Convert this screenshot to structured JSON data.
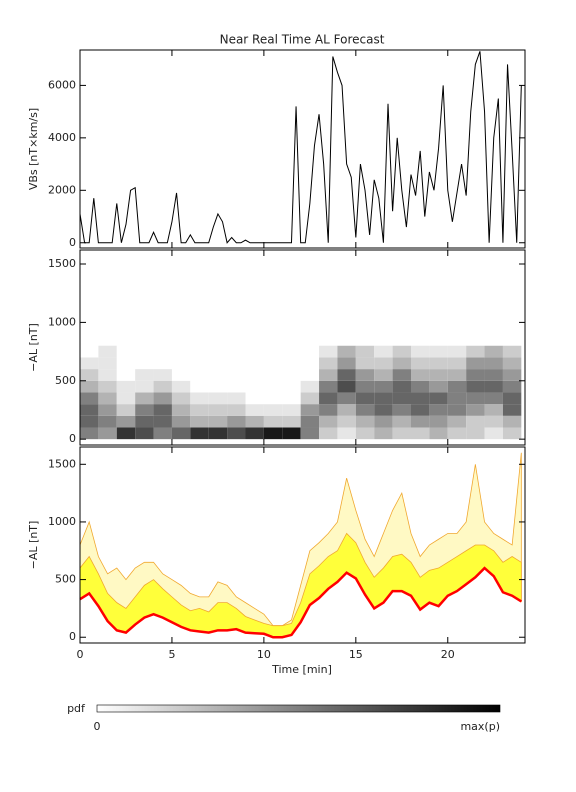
{
  "chart_data": [
    {
      "type": "line",
      "title": "Near Real Time AL Forecast",
      "ylabel": "VBs [nT×km/s]",
      "color": "#000000",
      "xlim": [
        0,
        24.2
      ],
      "xticks": [
        0,
        5,
        10,
        15,
        20
      ],
      "xtick_labels": false,
      "ylim": [
        -200,
        7350
      ],
      "yticks": [
        0,
        2000,
        4000,
        6000
      ],
      "x": [
        0,
        0.25,
        0.5,
        0.75,
        1,
        1.25,
        1.5,
        1.75,
        2,
        2.25,
        2.5,
        2.75,
        3,
        3.25,
        3.5,
        3.75,
        4,
        4.25,
        4.5,
        4.75,
        5,
        5.25,
        5.5,
        5.75,
        6,
        6.25,
        6.5,
        6.75,
        7,
        7.25,
        7.5,
        7.75,
        8,
        8.25,
        8.5,
        8.75,
        9,
        9.25,
        9.5,
        9.75,
        10,
        10.25,
        10.5,
        10.75,
        11,
        11.25,
        11.5,
        11.75,
        12,
        12.25,
        12.5,
        12.75,
        13,
        13.25,
        13.5,
        13.75,
        14,
        14.25,
        14.5,
        14.75,
        15,
        15.25,
        15.5,
        15.75,
        16,
        16.25,
        16.5,
        16.75,
        17,
        17.25,
        17.5,
        17.75,
        18,
        18.25,
        18.5,
        18.75,
        19,
        19.25,
        19.5,
        19.75,
        20,
        20.25,
        20.5,
        20.75,
        21,
        21.25,
        21.5,
        21.75,
        22,
        22.25,
        22.5,
        22.75,
        23,
        23.25,
        23.5,
        23.75,
        24
      ],
      "values": [
        1100,
        0,
        0,
        1700,
        0,
        0,
        0,
        0,
        1500,
        0,
        700,
        2000,
        2100,
        0,
        0,
        0,
        400,
        0,
        0,
        0,
        800,
        1900,
        0,
        0,
        300,
        0,
        0,
        0,
        0,
        600,
        1100,
        800,
        0,
        200,
        0,
        0,
        100,
        0,
        0,
        0,
        0,
        0,
        0,
        0,
        0,
        0,
        0,
        5200,
        0,
        0,
        1500,
        3700,
        4900,
        3000,
        0,
        7100,
        6500,
        6000,
        3000,
        2500,
        200,
        3000,
        2000,
        300,
        2400,
        1700,
        0,
        5300,
        1200,
        4000,
        2000,
        600,
        2600,
        1800,
        3500,
        1000,
        2700,
        2000,
        3600,
        6000,
        2000,
        800,
        1900,
        3000,
        1800,
        5000,
        6800,
        7300,
        5000,
        0,
        4000,
        5500,
        0,
        6800,
        3500,
        0,
        6000
      ]
    },
    {
      "type": "heatmap",
      "ylabel": "−AL [nT]",
      "xlim": [
        0,
        24.2
      ],
      "xticks": [
        0,
        5,
        10,
        15,
        20
      ],
      "xtick_labels": false,
      "ylim": [
        -50,
        1620
      ],
      "yticks": [
        0,
        500,
        1000,
        1500
      ],
      "x_bins": [
        0,
        1,
        2,
        3,
        4,
        5,
        6,
        7,
        8,
        9,
        10,
        11,
        12,
        13,
        14,
        15,
        16,
        17,
        18,
        19,
        20,
        21,
        22,
        23,
        24
      ],
      "y_bins": [
        0,
        100,
        200,
        300,
        400,
        500,
        600,
        700,
        800
      ],
      "values": [
        [
          0.5,
          0.4,
          0.8,
          0.7,
          0.5,
          0.6,
          0.8,
          0.8,
          0.7,
          0.8,
          0.9,
          0.9,
          0.5,
          0.2,
          0.1,
          0.2,
          0.3,
          0.2,
          0.2,
          0.3,
          0.2,
          0.2,
          0.1,
          0.2
        ],
        [
          0.6,
          0.5,
          0.4,
          0.6,
          0.6,
          0.4,
          0.3,
          0.3,
          0.4,
          0.3,
          0.2,
          0.2,
          0.5,
          0.3,
          0.2,
          0.3,
          0.4,
          0.3,
          0.4,
          0.4,
          0.3,
          0.2,
          0.2,
          0.3
        ],
        [
          0.6,
          0.4,
          0.2,
          0.5,
          0.6,
          0.3,
          0.2,
          0.2,
          0.2,
          0.1,
          0.1,
          0.1,
          0.4,
          0.5,
          0.3,
          0.5,
          0.6,
          0.5,
          0.6,
          0.5,
          0.5,
          0.4,
          0.3,
          0.6
        ],
        [
          0.5,
          0.3,
          0.1,
          0.3,
          0.4,
          0.2,
          0.1,
          0.1,
          0.1,
          0,
          0,
          0,
          0.2,
          0.6,
          0.5,
          0.6,
          0.6,
          0.6,
          0.6,
          0.6,
          0.5,
          0.5,
          0.5,
          0.6
        ],
        [
          0.3,
          0.2,
          0.1,
          0.1,
          0.2,
          0.1,
          0,
          0,
          0,
          0,
          0,
          0,
          0.1,
          0.5,
          0.7,
          0.5,
          0.5,
          0.6,
          0.5,
          0.4,
          0.5,
          0.6,
          0.6,
          0.5
        ],
        [
          0.2,
          0.1,
          0,
          0.1,
          0.1,
          0,
          0,
          0,
          0,
          0,
          0,
          0,
          0,
          0.3,
          0.6,
          0.4,
          0.3,
          0.5,
          0.3,
          0.3,
          0.3,
          0.5,
          0.5,
          0.4
        ],
        [
          0.1,
          0.1,
          0,
          0,
          0,
          0,
          0,
          0,
          0,
          0,
          0,
          0,
          0,
          0.2,
          0.4,
          0.2,
          0.2,
          0.3,
          0.2,
          0.2,
          0.2,
          0.4,
          0.4,
          0.3
        ],
        [
          0,
          0.1,
          0,
          0,
          0,
          0,
          0,
          0,
          0,
          0,
          0,
          0,
          0,
          0.1,
          0.3,
          0.2,
          0.1,
          0.2,
          0.1,
          0.1,
          0.1,
          0.2,
          0.3,
          0.2
        ]
      ]
    },
    {
      "type": "band",
      "ylabel": "−AL [nT]",
      "xlabel": "Time [min]",
      "xlim": [
        0,
        24.2
      ],
      "xticks": [
        0,
        5,
        10,
        15,
        20
      ],
      "xtick_labels": true,
      "ylim": [
        -50,
        1650
      ],
      "yticks": [
        0,
        500,
        1000,
        1500
      ],
      "x": [
        0,
        0.5,
        1,
        1.5,
        2,
        2.5,
        3,
        3.5,
        4,
        4.5,
        5,
        5.5,
        6,
        6.5,
        7,
        7.5,
        8,
        8.5,
        9,
        9.5,
        10,
        10.5,
        11,
        11.5,
        12,
        12.5,
        13,
        13.5,
        14,
        14.5,
        15,
        15.5,
        16,
        16.5,
        17,
        17.5,
        18,
        18.5,
        19,
        19.5,
        20,
        20.5,
        21,
        21.5,
        22,
        22.5,
        23,
        23.5,
        24
      ],
      "bands": [
        {
          "color": "#fff9c4",
          "edge": "#f0a830",
          "upper": [
            800,
            1000,
            700,
            550,
            600,
            500,
            600,
            650,
            650,
            550,
            500,
            450,
            380,
            350,
            350,
            480,
            450,
            350,
            300,
            250,
            200,
            100,
            100,
            150,
            450,
            750,
            820,
            900,
            1000,
            1380,
            1100,
            850,
            700,
            900,
            1100,
            1250,
            900,
            700,
            800,
            850,
            900,
            900,
            1000,
            1500,
            1000,
            900,
            850,
            800,
            1600
          ]
        },
        {
          "color": "#ffff3a",
          "edge": "#f0a830",
          "upper": [
            600,
            700,
            550,
            380,
            300,
            250,
            350,
            450,
            500,
            420,
            350,
            280,
            230,
            250,
            220,
            300,
            300,
            250,
            180,
            150,
            120,
            100,
            100,
            120,
            300,
            550,
            620,
            700,
            750,
            900,
            820,
            650,
            520,
            600,
            700,
            720,
            650,
            520,
            580,
            600,
            650,
            700,
            750,
            800,
            800,
            750,
            650,
            700,
            650
          ]
        }
      ],
      "series": [
        {
          "color": "#ff0000",
          "values": [
            330,
            380,
            270,
            140,
            60,
            40,
            110,
            170,
            200,
            170,
            130,
            90,
            60,
            50,
            40,
            60,
            60,
            70,
            40,
            35,
            30,
            0,
            0,
            20,
            130,
            280,
            340,
            420,
            480,
            560,
            510,
            370,
            250,
            300,
            400,
            400,
            360,
            240,
            300,
            270,
            360,
            400,
            460,
            520,
            600,
            530,
            390,
            360,
            310
          ]
        }
      ]
    }
  ],
  "colorbar": {
    "label": "pdf",
    "min_label": "0",
    "max_label": "max(p)",
    "colors": [
      "#ffffff",
      "#000000"
    ]
  }
}
